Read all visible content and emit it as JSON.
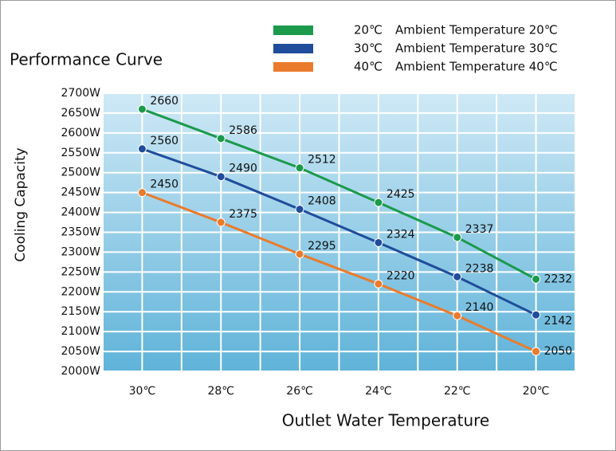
{
  "chart_data": {
    "type": "line",
    "title": "Performance Curve",
    "x_label": "Outlet Water Temperature",
    "y_label": "Cooling Capacity",
    "categories": [
      "30℃",
      "28℃",
      "26℃",
      "24℃",
      "22℃",
      "20℃"
    ],
    "series": [
      {
        "name": "20℃",
        "description": "Ambient Temperature 20℃",
        "color": "#1b9a4b",
        "values": [
          2660,
          2586,
          2512,
          2425,
          2337,
          2232
        ]
      },
      {
        "name": "30℃",
        "description": "Ambient Temperature 30℃",
        "color": "#1f4d9b",
        "values": [
          2560,
          2490,
          2408,
          2324,
          2238,
          2142
        ]
      },
      {
        "name": "40℃",
        "description": "Ambient Temperature 40℃",
        "color": "#ea7b2c",
        "values": [
          2450,
          2375,
          2295,
          2220,
          2140,
          2050
        ]
      }
    ],
    "ylim": [
      2000,
      2700
    ],
    "yticks": [
      {
        "value": 2000,
        "label": "2000W"
      },
      {
        "value": 2050,
        "label": "2050W"
      },
      {
        "value": 2100,
        "label": "2100W"
      },
      {
        "value": 2150,
        "label": "2150W"
      },
      {
        "value": 2200,
        "label": "2200W"
      },
      {
        "value": 2250,
        "label": "2250W"
      },
      {
        "value": 2300,
        "label": "2300W"
      },
      {
        "value": 2350,
        "label": "2350W"
      },
      {
        "value": 2400,
        "label": "2400W"
      },
      {
        "value": 2450,
        "label": "2450W"
      },
      {
        "value": 2500,
        "label": "2500W"
      },
      {
        "value": 2550,
        "label": "2550W"
      },
      {
        "value": 2600,
        "label": "2600W"
      },
      {
        "value": 2650,
        "label": "2650W"
      },
      {
        "value": 2700,
        "label": "2700W"
      }
    ],
    "grid": true
  }
}
